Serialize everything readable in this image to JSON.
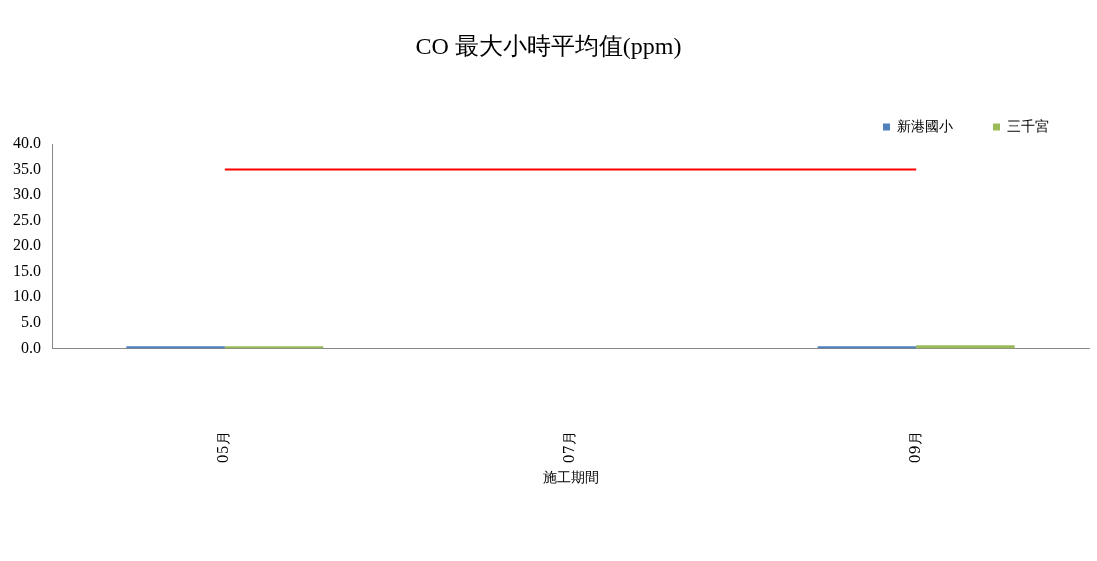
{
  "chart_data": {
    "type": "bar",
    "title": "CO 最大小時平均值(ppm)",
    "xlabel": "施工期間",
    "categories": [
      "05月",
      "07月",
      "09月"
    ],
    "series": [
      {
        "name": "新港國小",
        "color": "#4f81bd",
        "values": [
          0.4,
          null,
          0.4
        ]
      },
      {
        "name": "三千宮",
        "color": "#9bbb59",
        "values": [
          0.4,
          null,
          0.6
        ]
      },
      {
        "type": "line",
        "color": "#ff0000",
        "values": [
          35,
          35,
          35
        ],
        "marker": "none"
      }
    ],
    "ylim": [
      0,
      40
    ],
    "yticks": [
      {
        "value": 0,
        "label": "0.0"
      },
      {
        "value": 5,
        "label": "5.0"
      },
      {
        "value": 10,
        "label": "10.0"
      },
      {
        "value": 15,
        "label": "15.0"
      },
      {
        "value": 20,
        "label": "20.0"
      },
      {
        "value": 25,
        "label": "25.0"
      },
      {
        "value": 30,
        "label": "30.0"
      },
      {
        "value": 35,
        "label": "35.0"
      },
      {
        "value": 40,
        "label": "40.0"
      }
    ],
    "grid": false,
    "legend": "top right"
  }
}
